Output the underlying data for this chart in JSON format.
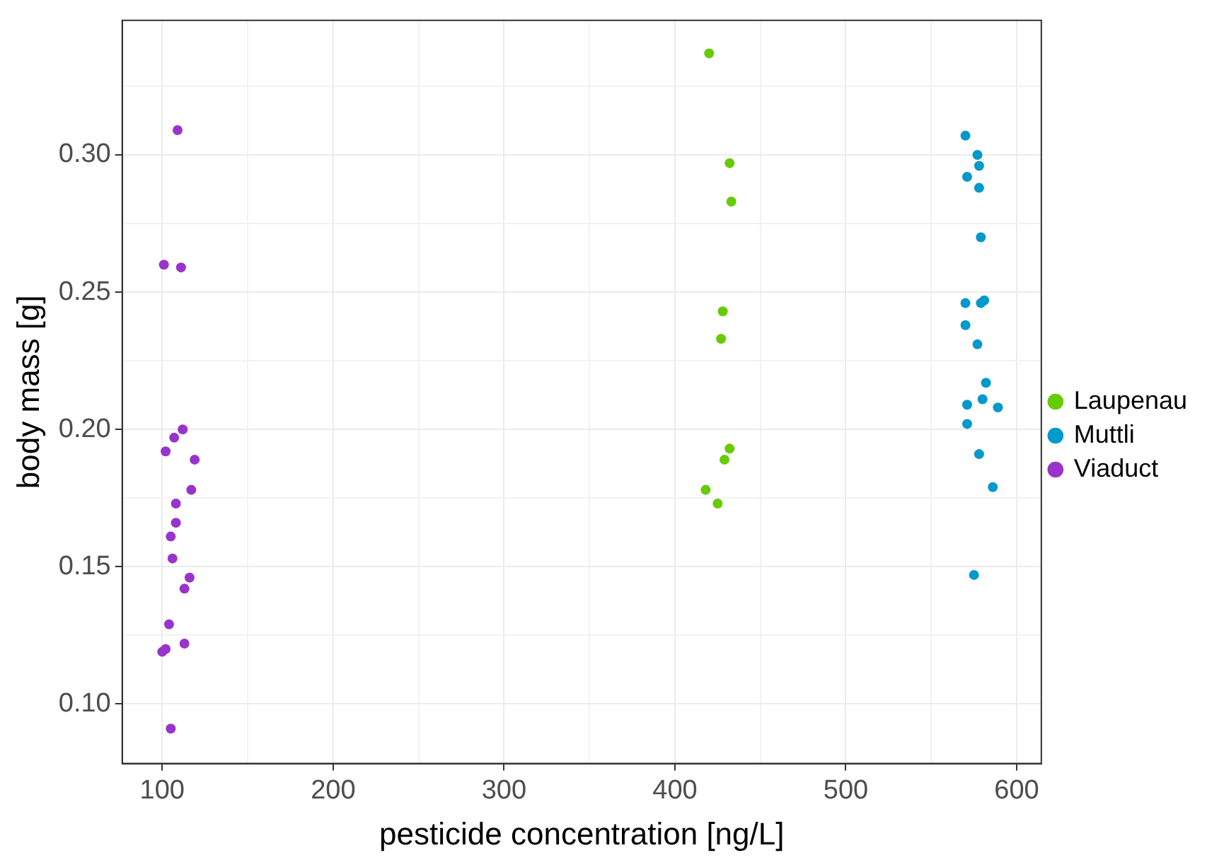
{
  "chart_data": {
    "type": "scatter",
    "xlabel": "pesticide concentration [ng/L]",
    "ylabel": "body mass [g]",
    "xlim": [
      76.6,
      614.4
    ],
    "ylim": [
      0.0783,
      0.349
    ],
    "xticks": [
      100,
      {
        "value": 150,
        "label": null
      },
      200,
      {
        "value": 250,
        "label": null
      },
      300,
      {
        "value": 350,
        "label": null
      },
      400,
      {
        "value": 450,
        "label": null
      },
      500,
      {
        "value": 550,
        "label": null
      },
      600
    ],
    "yticks": [
      {
        "value": 0.1,
        "label": "0.10"
      },
      {
        "value": 0.125,
        "label": null
      },
      {
        "value": 0.15,
        "label": "0.15"
      },
      {
        "value": 0.175,
        "label": null
      },
      {
        "value": 0.2,
        "label": "0.20"
      },
      {
        "value": 0.225,
        "label": null
      },
      {
        "value": 0.25,
        "label": "0.25"
      },
      {
        "value": 0.275,
        "label": null
      },
      {
        "value": 0.3,
        "label": "0.30"
      },
      {
        "value": 0.325,
        "label": null
      }
    ],
    "grid": true,
    "legend": "right",
    "marker": "circle",
    "series": [
      {
        "name": "Laupenau",
        "color": "#66cc00",
        "x": [
          420,
          432,
          433,
          428,
          427,
          432,
          429,
          418,
          425
        ],
        "values": [
          0.337,
          0.297,
          0.283,
          0.243,
          0.233,
          0.193,
          0.189,
          0.178,
          0.173
        ]
      },
      {
        "name": "Muttli",
        "color": "#0099cc",
        "x": [
          570,
          577,
          578,
          571,
          578,
          579,
          570,
          579,
          581,
          570,
          577,
          582,
          580,
          571,
          589,
          571,
          578,
          586,
          575
        ],
        "values": [
          0.307,
          0.3,
          0.296,
          0.292,
          0.288,
          0.27,
          0.246,
          0.246,
          0.247,
          0.238,
          0.231,
          0.217,
          0.211,
          0.209,
          0.208,
          0.202,
          0.191,
          0.179,
          0.147
        ]
      },
      {
        "name": "Viaduct",
        "color": "#9933cc",
        "x": [
          109,
          101,
          111,
          112,
          107,
          102,
          119,
          117,
          108,
          108,
          105,
          106,
          116,
          113,
          104,
          113,
          102,
          100,
          105
        ],
        "values": [
          0.309,
          0.26,
          0.259,
          0.2,
          0.197,
          0.192,
          0.189,
          0.178,
          0.173,
          0.166,
          0.161,
          0.153,
          0.146,
          0.142,
          0.129,
          0.122,
          0.12,
          0.119,
          0.091
        ]
      }
    ]
  }
}
